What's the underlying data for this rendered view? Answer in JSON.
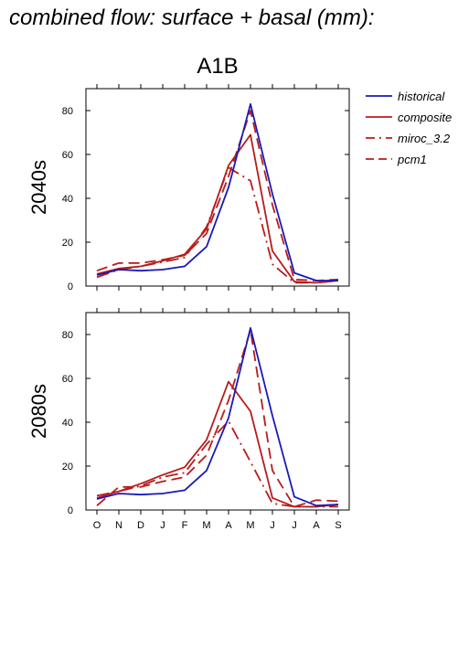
{
  "figure_title": "combined flow: surface + basal (mm):",
  "scenario": "A1B",
  "colors": {
    "historical": "#1a1ab8",
    "scenarios": "#b81c1c"
  },
  "legend": [
    {
      "name": "historical",
      "style": "solid",
      "color": "#1a1ab8"
    },
    {
      "name": "composite",
      "style": "solid",
      "color": "#b81c1c"
    },
    {
      "name": "miroc_3.2",
      "style": "dashdot",
      "color": "#b81c1c"
    },
    {
      "name": "pcm1",
      "style": "dashed",
      "color": "#b81c1c"
    }
  ],
  "chart_data": [
    {
      "type": "line",
      "panel_label": "2040s",
      "categories": [
        "O",
        "N",
        "D",
        "J",
        "F",
        "M",
        "A",
        "M",
        "J",
        "J",
        "A",
        "S"
      ],
      "ylim": [
        0,
        90
      ],
      "yticks": [
        0,
        20,
        40,
        60,
        80
      ],
      "series": [
        {
          "name": "historical",
          "values": [
            5,
            7.5,
            7,
            7.5,
            9,
            18,
            45,
            83,
            42,
            6,
            2.5,
            2.5
          ]
        },
        {
          "name": "composite",
          "values": [
            5.5,
            8,
            9,
            11.5,
            14.5,
            26,
            55,
            69,
            16,
            2,
            1.5,
            2.5
          ]
        },
        {
          "name": "miroc_3.2",
          "values": [
            4,
            7.5,
            9,
            11,
            13,
            27,
            54,
            48,
            10,
            1.5,
            1.5,
            2.5
          ]
        },
        {
          "name": "pcm1",
          "values": [
            7,
            10.5,
            10.5,
            12,
            14,
            24,
            50,
            80,
            37,
            3,
            2.5,
            3
          ]
        }
      ]
    },
    {
      "type": "line",
      "panel_label": "2080s",
      "categories": [
        "O",
        "N",
        "D",
        "J",
        "F",
        "M",
        "A",
        "M",
        "J",
        "J",
        "A",
        "S"
      ],
      "ylim": [
        0,
        90
      ],
      "yticks": [
        0,
        20,
        40,
        60,
        80
      ],
      "series": [
        {
          "name": "historical",
          "values": [
            5,
            7.5,
            7,
            7.5,
            9,
            18,
            42,
            83,
            43,
            6,
            2,
            2.5
          ]
        },
        {
          "name": "composite",
          "values": [
            5.5,
            8.5,
            12,
            16,
            19.5,
            32,
            58.5,
            45,
            5.5,
            1.5,
            1.5,
            2.5
          ]
        },
        {
          "name": "miroc_3.2",
          "values": [
            6.5,
            8.5,
            11,
            15,
            17,
            30,
            40.5,
            22,
            3,
            1.5,
            1.5,
            1.5
          ]
        },
        {
          "name": "pcm1",
          "values": [
            2,
            10.5,
            10.5,
            13,
            15,
            25,
            50,
            82,
            18,
            1.5,
            4.5,
            4
          ]
        }
      ]
    }
  ]
}
